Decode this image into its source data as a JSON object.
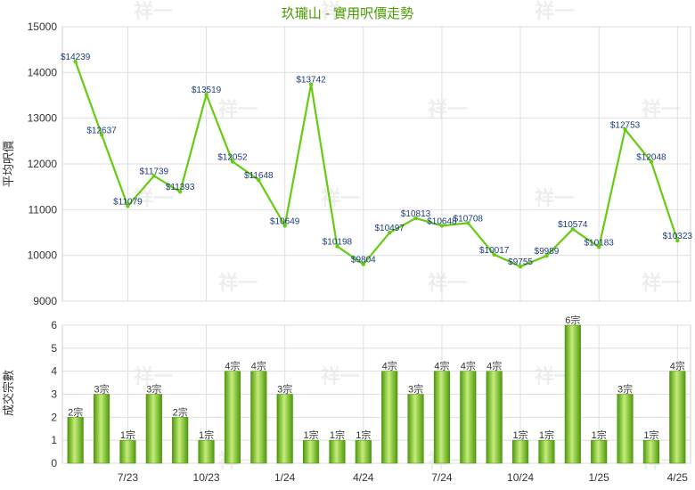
{
  "chart_data": [
    {
      "type": "line",
      "title": "玖瓏山 - 實用呎價走勢",
      "ylabel": "平均呎價",
      "ylim": [
        9000,
        15000
      ],
      "yticks": [
        9000,
        10000,
        11000,
        12000,
        13000,
        14000,
        15000
      ],
      "grid": true,
      "color": "#66cc11",
      "series": [
        {
          "values": [
            14239,
            12637,
            11079,
            11739,
            11393,
            13519,
            12052,
            11648,
            10649,
            13742,
            10198,
            9804,
            10497,
            10813,
            10648,
            10708,
            10017,
            9755,
            9989,
            10574,
            10183,
            12753,
            12048,
            10323
          ],
          "labels": [
            "$14239",
            "$12637",
            "$11079",
            "$11739",
            "$11393",
            "$13519",
            "$12052",
            "$11648",
            "$10649",
            "$13742",
            "$10198",
            "$9804",
            "$10497",
            "$10813",
            "$10648",
            "$10708",
            "$10017",
            "$9755",
            "$9989",
            "$10574",
            "$10183",
            "$12753",
            "$12048",
            "$10323"
          ]
        }
      ]
    },
    {
      "type": "bar",
      "ylabel": "成交宗數",
      "ylim": [
        0,
        6
      ],
      "yticks": [
        0,
        1,
        2,
        3,
        4,
        5,
        6
      ],
      "grid": true,
      "color": "#77c41e",
      "categories": [
        "",
        "",
        "7/23",
        "",
        "",
        "10/23",
        "",
        "",
        "1/24",
        "",
        "",
        "4/24",
        "",
        "",
        "7/24",
        "",
        "",
        "10/24",
        "",
        "",
        "1/25",
        "",
        "",
        "4/25"
      ],
      "values": [
        2,
        3,
        1,
        3,
        2,
        1,
        4,
        4,
        3,
        1,
        1,
        1,
        4,
        3,
        4,
        4,
        4,
        1,
        1,
        6,
        1,
        3,
        1,
        4
      ],
      "labels": [
        "2宗",
        "3宗",
        "1宗",
        "3宗",
        "2宗",
        "1宗",
        "4宗",
        "4宗",
        "3宗",
        "1宗",
        "1宗",
        "1宗",
        "4宗",
        "3宗",
        "4宗",
        "4宗",
        "4宗",
        "1宗",
        "1宗",
        "6宗",
        "1宗",
        "3宗",
        "1宗",
        "4宗"
      ]
    }
  ],
  "watermark": "祥一"
}
